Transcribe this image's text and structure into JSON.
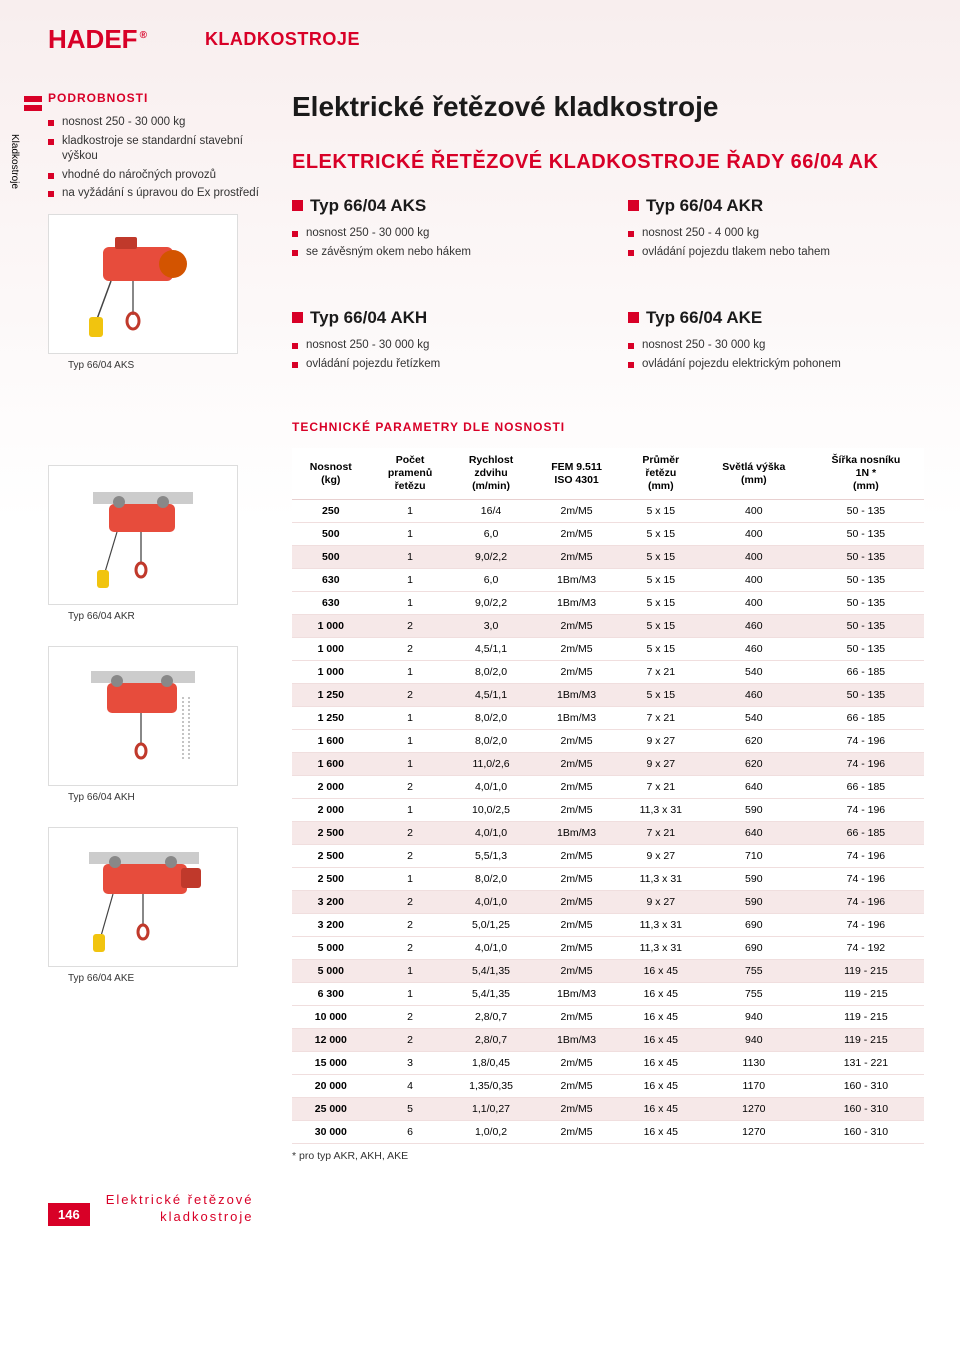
{
  "brand": "HADEF",
  "section_title": "KLADKOSTROJE",
  "side_tab": "Kladkostroje",
  "details": {
    "heading": "PODROBNOSTI",
    "items": [
      "nosnost 250 - 30 000 kg",
      "kladkostroje se standardní stavební výškou",
      "vhodné do náročných provozů",
      "na vyžádání s úpravou do Ex prostředí"
    ]
  },
  "image_captions": [
    "Typ 66/04 AKS",
    "Typ 66/04 AKR",
    "Typ 66/04 AKH",
    "Typ 66/04 AKE"
  ],
  "main_heading": "Elektrické řetězové kladkostroje",
  "sub_heading": "ELEKTRICKÉ ŘETĚZOVÉ KLADKOSTROJE ŘADY 66/04 AK",
  "types": [
    {
      "name": "Typ 66/04 AKS",
      "bullets": [
        "nosnost 250 - 30 000 kg",
        "se závěsným okem nebo hákem"
      ]
    },
    {
      "name": "Typ 66/04 AKR",
      "bullets": [
        "nosnost 250 - 4 000 kg",
        "ovládání pojezdu tlakem nebo tahem"
      ]
    },
    {
      "name": "Typ 66/04 AKH",
      "bullets": [
        "nosnost 250 - 30 000 kg",
        "ovládání pojezdu řetízkem"
      ]
    },
    {
      "name": "Typ 66/04 AKE",
      "bullets": [
        "nosnost 250 - 30 000 kg",
        "ovládání pojezdu elektrickým pohonem"
      ]
    }
  ],
  "tech_heading": "TECHNICKÉ PARAMETRY DLE NOSNOSTI",
  "table": {
    "columns": [
      "Nosnost\n(kg)",
      "Počet\npramenů\nřetězu",
      "Rychlost\nzdvihu\n(m/min)",
      "FEM 9.511\nISO 4301",
      "Průměr\nřetězu\n(mm)",
      "Světlá výška\n(mm)",
      "Šířka nosníku\n1N *\n(mm)"
    ],
    "rows": [
      [
        "250",
        "1",
        "16/4",
        "2m/M5",
        "5 x 15",
        "400",
        "50 - 135"
      ],
      [
        "500",
        "1",
        "6,0",
        "2m/M5",
        "5 x 15",
        "400",
        "50 - 135"
      ],
      [
        "500",
        "1",
        "9,0/2,2",
        "2m/M5",
        "5 x 15",
        "400",
        "50 - 135"
      ],
      [
        "630",
        "1",
        "6,0",
        "1Bm/M3",
        "5 x 15",
        "400",
        "50 - 135"
      ],
      [
        "630",
        "1",
        "9,0/2,2",
        "1Bm/M3",
        "5 x 15",
        "400",
        "50 - 135"
      ],
      [
        "1 000",
        "2",
        "3,0",
        "2m/M5",
        "5 x 15",
        "460",
        "50 - 135"
      ],
      [
        "1 000",
        "2",
        "4,5/1,1",
        "2m/M5",
        "5 x 15",
        "460",
        "50 - 135"
      ],
      [
        "1 000",
        "1",
        "8,0/2,0",
        "2m/M5",
        "7 x 21",
        "540",
        "66 - 185"
      ],
      [
        "1 250",
        "2",
        "4,5/1,1",
        "1Bm/M3",
        "5 x 15",
        "460",
        "50 - 135"
      ],
      [
        "1 250",
        "1",
        "8,0/2,0",
        "1Bm/M3",
        "7 x 21",
        "540",
        "66 - 185"
      ],
      [
        "1 600",
        "1",
        "8,0/2,0",
        "2m/M5",
        "9 x 27",
        "620",
        "74 - 196"
      ],
      [
        "1 600",
        "1",
        "11,0/2,6",
        "2m/M5",
        "9 x 27",
        "620",
        "74 - 196"
      ],
      [
        "2 000",
        "2",
        "4,0/1,0",
        "2m/M5",
        "7 x 21",
        "640",
        "66 - 185"
      ],
      [
        "2 000",
        "1",
        "10,0/2,5",
        "2m/M5",
        "11,3 x 31",
        "590",
        "74 - 196"
      ],
      [
        "2 500",
        "2",
        "4,0/1,0",
        "1Bm/M3",
        "7 x 21",
        "640",
        "66 - 185"
      ],
      [
        "2 500",
        "2",
        "5,5/1,3",
        "2m/M5",
        "9 x 27",
        "710",
        "74 - 196"
      ],
      [
        "2 500",
        "1",
        "8,0/2,0",
        "2m/M5",
        "11,3 x 31",
        "590",
        "74 - 196"
      ],
      [
        "3 200",
        "2",
        "4,0/1,0",
        "2m/M5",
        "9 x 27",
        "590",
        "74 - 196"
      ],
      [
        "3 200",
        "2",
        "5,0/1,25",
        "2m/M5",
        "11,3 x 31",
        "690",
        "74 - 196"
      ],
      [
        "5 000",
        "2",
        "4,0/1,0",
        "2m/M5",
        "11,3 x 31",
        "690",
        "74 - 192"
      ],
      [
        "5 000",
        "1",
        "5,4/1,35",
        "2m/M5",
        "16 x 45",
        "755",
        "119 - 215"
      ],
      [
        "6 300",
        "1",
        "5,4/1,35",
        "1Bm/M3",
        "16 x 45",
        "755",
        "119 - 215"
      ],
      [
        "10 000",
        "2",
        "2,8/0,7",
        "2m/M5",
        "16 x 45",
        "940",
        "119 - 215"
      ],
      [
        "12 000",
        "2",
        "2,8/0,7",
        "1Bm/M3",
        "16 x 45",
        "940",
        "119 - 215"
      ],
      [
        "15 000",
        "3",
        "1,8/0,45",
        "2m/M5",
        "16 x 45",
        "1130",
        "131 - 221"
      ],
      [
        "20 000",
        "4",
        "1,35/0,35",
        "2m/M5",
        "16 x 45",
        "1170",
        "160 - 310"
      ],
      [
        "25 000",
        "5",
        "1,1/0,27",
        "2m/M5",
        "16 x 45",
        "1270",
        "160 - 310"
      ],
      [
        "30 000",
        "6",
        "1,0/0,2",
        "2m/M5",
        "16 x 45",
        "1270",
        "160 - 310"
      ]
    ],
    "band_pattern": [
      0,
      0,
      1,
      0,
      0,
      1,
      0,
      0,
      1,
      0,
      0,
      1,
      0,
      0,
      1,
      0,
      0,
      1,
      0,
      0,
      1,
      0,
      0,
      1,
      0,
      0,
      1,
      0
    ],
    "band_pattern_note": "0 = white row, 1 = pink band",
    "footnote": "* pro typ AKR, AKH, AKE"
  },
  "footer": {
    "page_number": "146",
    "text_line1": "Elektrické řetězové",
    "text_line2": "kladkostroje"
  },
  "colors": {
    "brand_red": "#d80027",
    "band_bg": "#f6e8e8",
    "page_tint": "#f8eeee",
    "text_dark": "#1a1a1a"
  }
}
